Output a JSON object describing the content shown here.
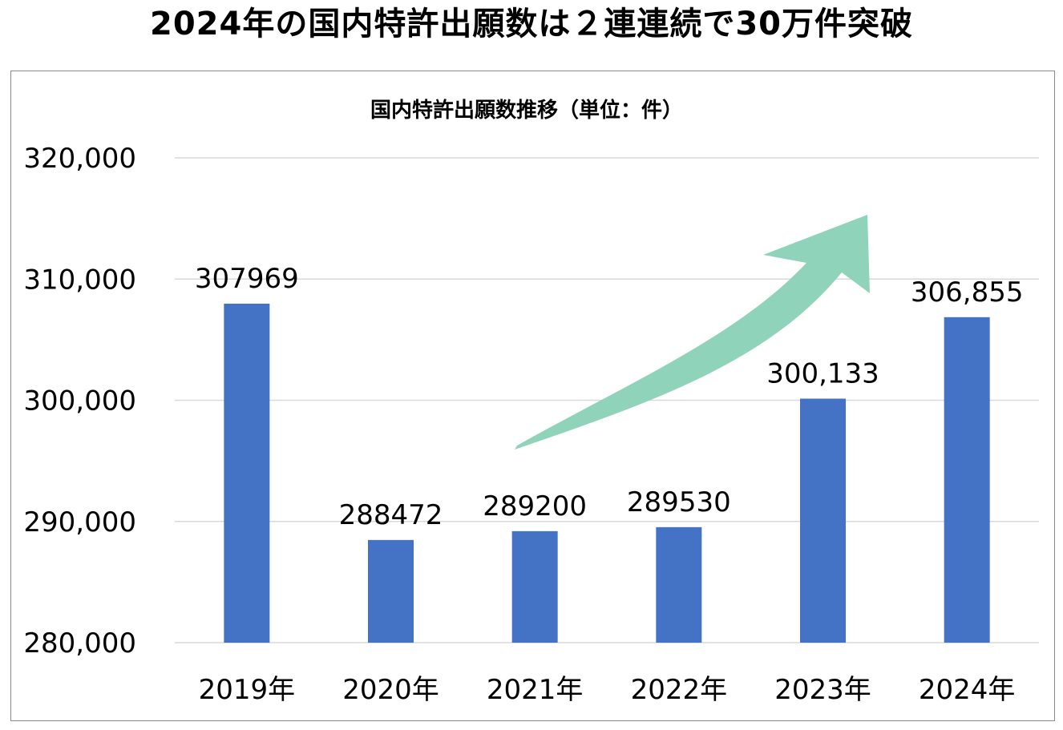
{
  "headline": "2024年の国内特許出願数は２連連続で30万件突破",
  "colors": {
    "bar": "#4472c4",
    "arrow": "#8fd3bb",
    "grid": "#d9d9d9",
    "frame": "#8a8a8a",
    "text": "#000000"
  },
  "chart_data": {
    "type": "bar",
    "title": "国内特許出願数推移（単位：件）",
    "categories": [
      "2019年",
      "2020年",
      "2021年",
      "2022年",
      "2023年",
      "2024年"
    ],
    "values": [
      307969,
      288472,
      289200,
      289530,
      300133,
      306855
    ],
    "data_labels": [
      "307969",
      "288472",
      "289200",
      "289530",
      "300,133",
      "306,855"
    ],
    "ylim": [
      280000,
      320000
    ],
    "yticks": [
      "280,000",
      "290,000",
      "300,000",
      "310,000",
      "320,000"
    ],
    "ytick_values": [
      280000,
      290000,
      300000,
      310000,
      320000
    ],
    "xlabel": "",
    "ylabel": "",
    "grid": true,
    "legend": "none",
    "annotation": "upward-trend-arrow"
  }
}
